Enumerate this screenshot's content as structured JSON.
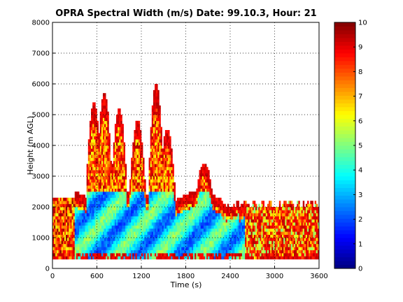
{
  "chart_data": {
    "type": "heatmap",
    "title": "OPRA Spectral Width (m/s)  Date: 99.10.3, Hour: 21",
    "xlabel": "Time (s)",
    "ylabel": "Height (m AGL)",
    "xlim": [
      0,
      3600
    ],
    "ylim": [
      0,
      8000
    ],
    "xticks": [
      0,
      600,
      1200,
      1800,
      2400,
      3000,
      3600
    ],
    "xtick_labels": [
      "0",
      "600",
      "1200",
      "1800",
      "2400",
      "3000",
      "3600"
    ],
    "yticks": [
      0,
      1000,
      2000,
      3000,
      4000,
      5000,
      6000,
      7000,
      8000
    ],
    "ytick_labels": [
      "0",
      "1000",
      "2000",
      "3000",
      "4000",
      "5000",
      "6000",
      "7000",
      "8000"
    ],
    "grid": true,
    "colorbar": {
      "range": [
        0,
        10
      ],
      "ticks": [
        0,
        1,
        2,
        3,
        4,
        5,
        6,
        7,
        8,
        9,
        10
      ],
      "tick_labels": [
        "0",
        "1",
        "2",
        "3",
        "4",
        "5",
        "6",
        "7",
        "8",
        "9",
        "10"
      ],
      "colormap": "jet"
    },
    "data_extent": {
      "time_range_s": [
        0,
        3600
      ],
      "height_range_m": [
        300,
        6000
      ],
      "plumes": [
        {
          "time_s": 560,
          "top_m": 5400
        },
        {
          "time_s": 700,
          "top_m": 5700
        },
        {
          "time_s": 900,
          "top_m": 5200
        },
        {
          "time_s": 1150,
          "top_m": 4800
        },
        {
          "time_s": 1400,
          "top_m": 6000
        },
        {
          "time_s": 1550,
          "top_m": 4500
        },
        {
          "time_s": 2050,
          "top_m": 3400
        }
      ],
      "low_width_region": {
        "value_ms": 3,
        "time_range_s": [
          300,
          2600
        ],
        "height_range_m": [
          300,
          2500
        ]
      },
      "high_width_edges": {
        "value_ms": 9.5
      }
    }
  }
}
